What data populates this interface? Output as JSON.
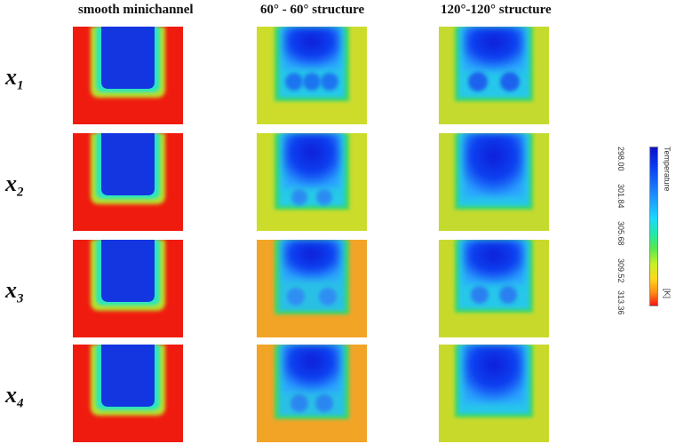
{
  "columns": {
    "smooth": "smooth minichannel",
    "s60": "60° - 60° structure",
    "s120": "120°-120° structure"
  },
  "rows": [
    {
      "base": "x",
      "sub": "1"
    },
    {
      "base": "x",
      "sub": "2"
    },
    {
      "base": "x",
      "sub": "3"
    },
    {
      "base": "x",
      "sub": "4"
    }
  ],
  "legend": {
    "quantity": "Temperature",
    "unit": "[K]",
    "ticks": [
      "298.00",
      "301.84",
      "305.68",
      "309.52",
      "313.36"
    ]
  },
  "colors": {
    "hot": "#f01b0f",
    "warm_yellow": "#ccdc2a",
    "orange": "#f2a426",
    "cold": "#1436e0",
    "edge_green": "#3bd86a"
  }
}
